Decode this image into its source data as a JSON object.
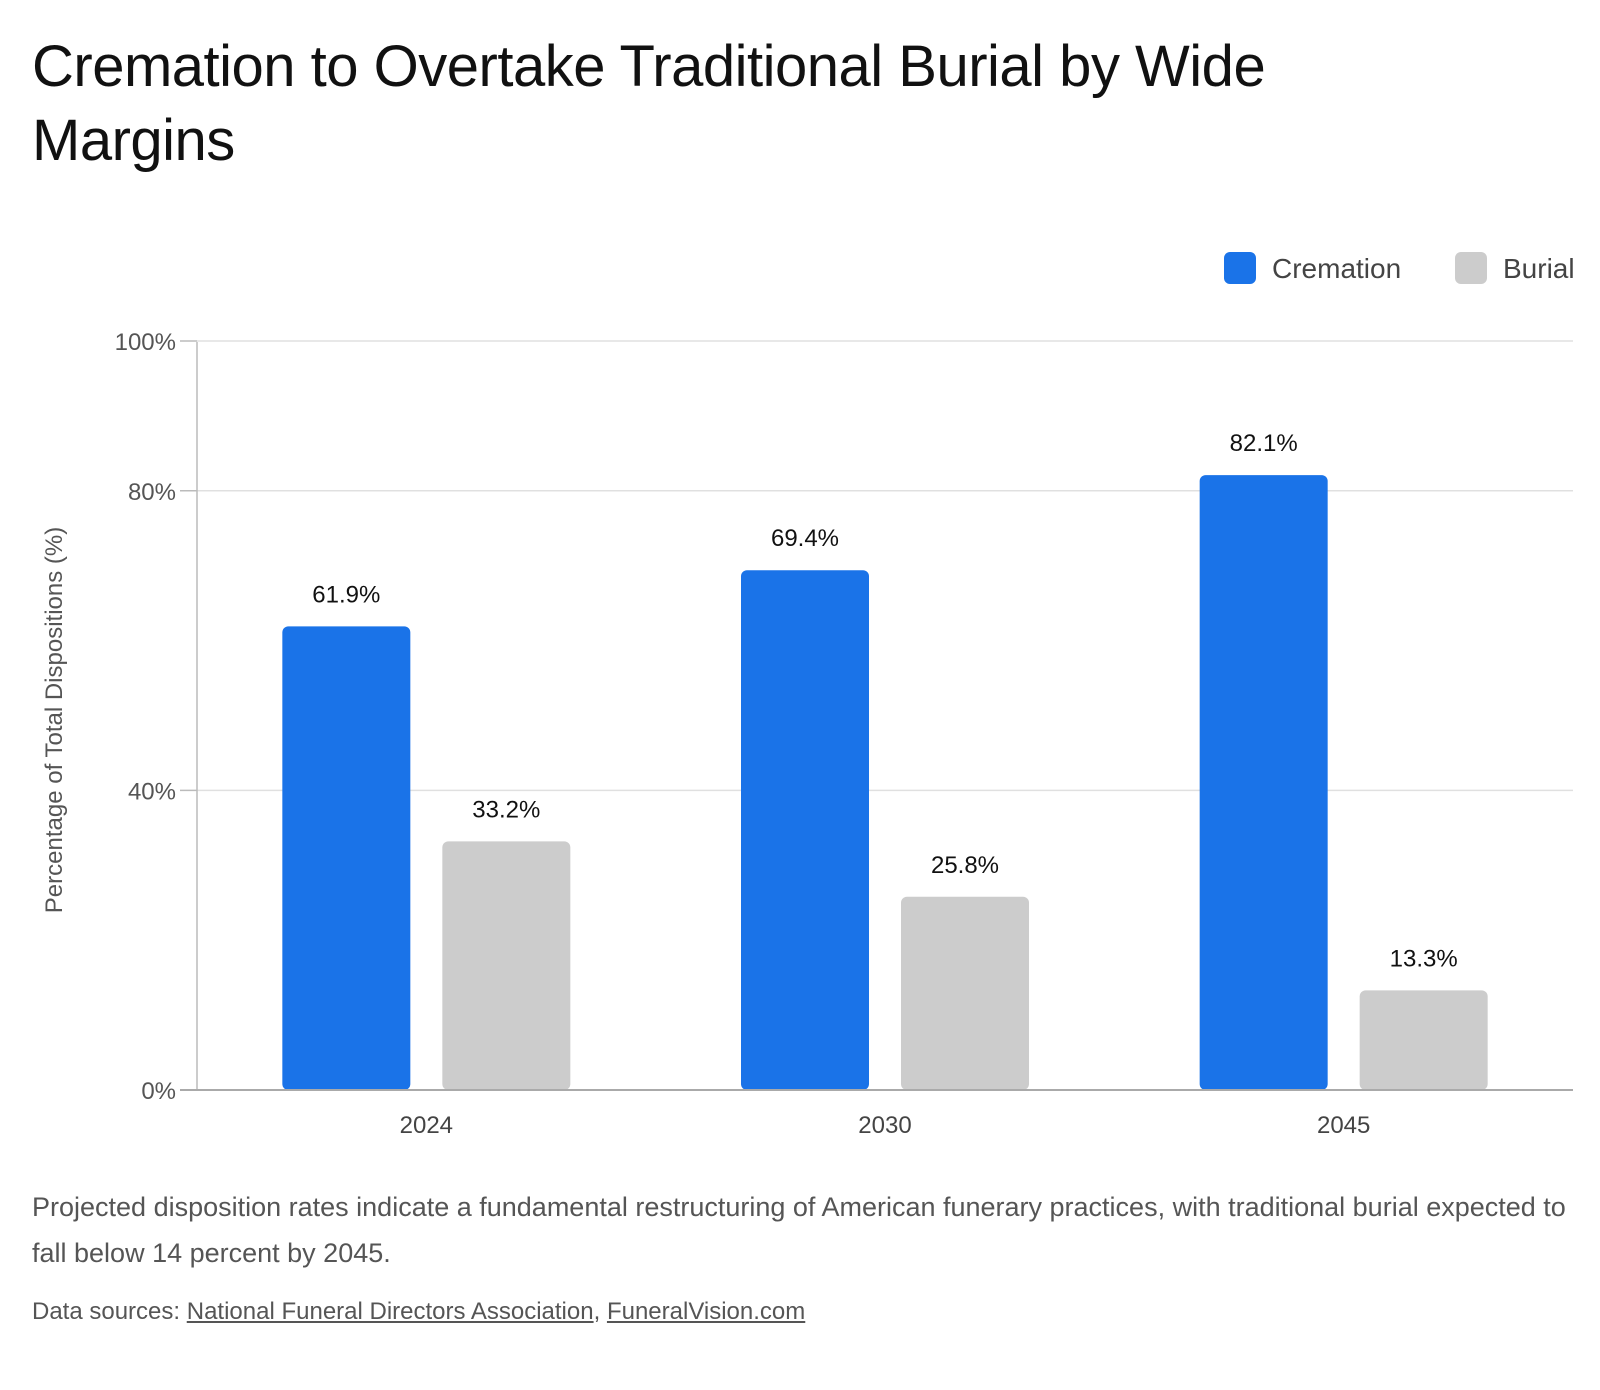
{
  "title": "Cremation to Overtake Traditional Burial by Wide Margins",
  "caption": "Projected disposition rates indicate a fundamental restructuring of American funerary practices, with traditional burial expected to fall below 14 percent by 2045.",
  "sources": {
    "prefix": "Data sources: ",
    "links": [
      "National Funeral Directors Association",
      "FuneralVision.com"
    ],
    "separator": ", "
  },
  "chart_data": {
    "type": "bar",
    "categories": [
      "2024",
      "2030",
      "2045"
    ],
    "series": [
      {
        "name": "Cremation",
        "values": [
          61.9,
          69.4,
          82.1
        ],
        "color": "#1a73e8"
      },
      {
        "name": "Burial",
        "values": [
          33.2,
          25.8,
          13.3
        ],
        "color": "#cccccc"
      }
    ],
    "data_labels": [
      [
        "61.9%",
        "69.4%",
        "82.1%"
      ],
      [
        "33.2%",
        "25.8%",
        "13.3%"
      ]
    ],
    "ylabel": "Percentage of Total Dispositions (%)",
    "xlabel": "",
    "ylim": [
      0,
      100
    ],
    "yticks": [
      0,
      40,
      80,
      100
    ],
    "ytick_labels": [
      "0%",
      "40%",
      "80%",
      "100%"
    ],
    "grid": true,
    "legend_position": "top-right"
  }
}
